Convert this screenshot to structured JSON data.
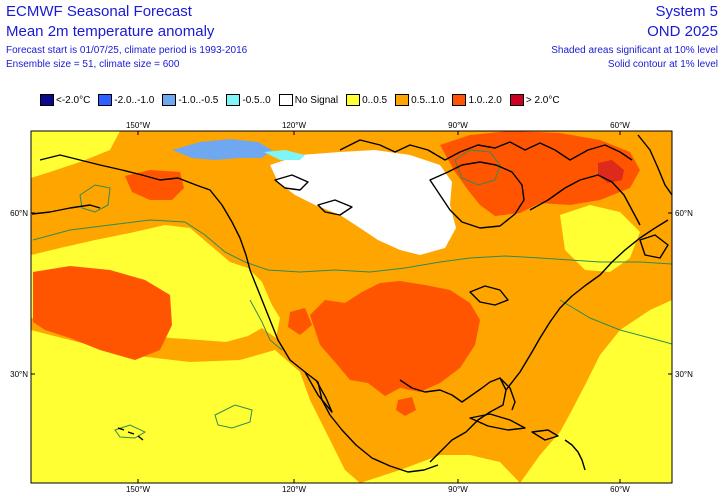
{
  "header": {
    "title": "ECMWF Seasonal Forecast",
    "subtitle": "Mean 2m temperature anomaly",
    "line3": "Forecast start is 01/07/25, climate period is 1993-2016",
    "line4": "Ensemble size = 51, climate size = 600",
    "system": "System 5",
    "period": "OND 2025",
    "note1": "Shaded areas significant at 10% level",
    "note2": "Solid contour at 1% level"
  },
  "legend": [
    {
      "label": "<-2.0°C",
      "color": "#0a0a8a"
    },
    {
      "label": "-2.0..-1.0",
      "color": "#3060ff"
    },
    {
      "label": "-1.0..-0.5",
      "color": "#6fa8f0"
    },
    {
      "label": "-0.5..0",
      "color": "#7ff5f5"
    },
    {
      "label": "No Signal",
      "color": "#ffffff"
    },
    {
      "label": "0..0.5",
      "color": "#ffff33"
    },
    {
      "label": "0.5..1.0",
      "color": "#ffa500"
    },
    {
      "label": "1.0..2.0",
      "color": "#ff5500"
    },
    {
      "label": "> 2.0°C",
      "color": "#cc0022"
    }
  ],
  "axes": {
    "lon_top": [
      "150°W",
      "120°W",
      "90°W",
      "60°W"
    ],
    "lon_bottom": [
      "150°W",
      "120°W",
      "90°W",
      "60°W"
    ],
    "lat_left": [
      "60°N",
      "30°N"
    ],
    "lat_right": [
      "60°N",
      "30°N"
    ]
  },
  "colors": {
    "yellow": "#ffff33",
    "orange": "#ffa500",
    "red": "#ff5500",
    "darkred": "#dd2a1a",
    "nosignal": "#ffffff",
    "lightblue": "#6fa8f0",
    "contour": "#2e8b57",
    "coast": "#000000"
  }
}
